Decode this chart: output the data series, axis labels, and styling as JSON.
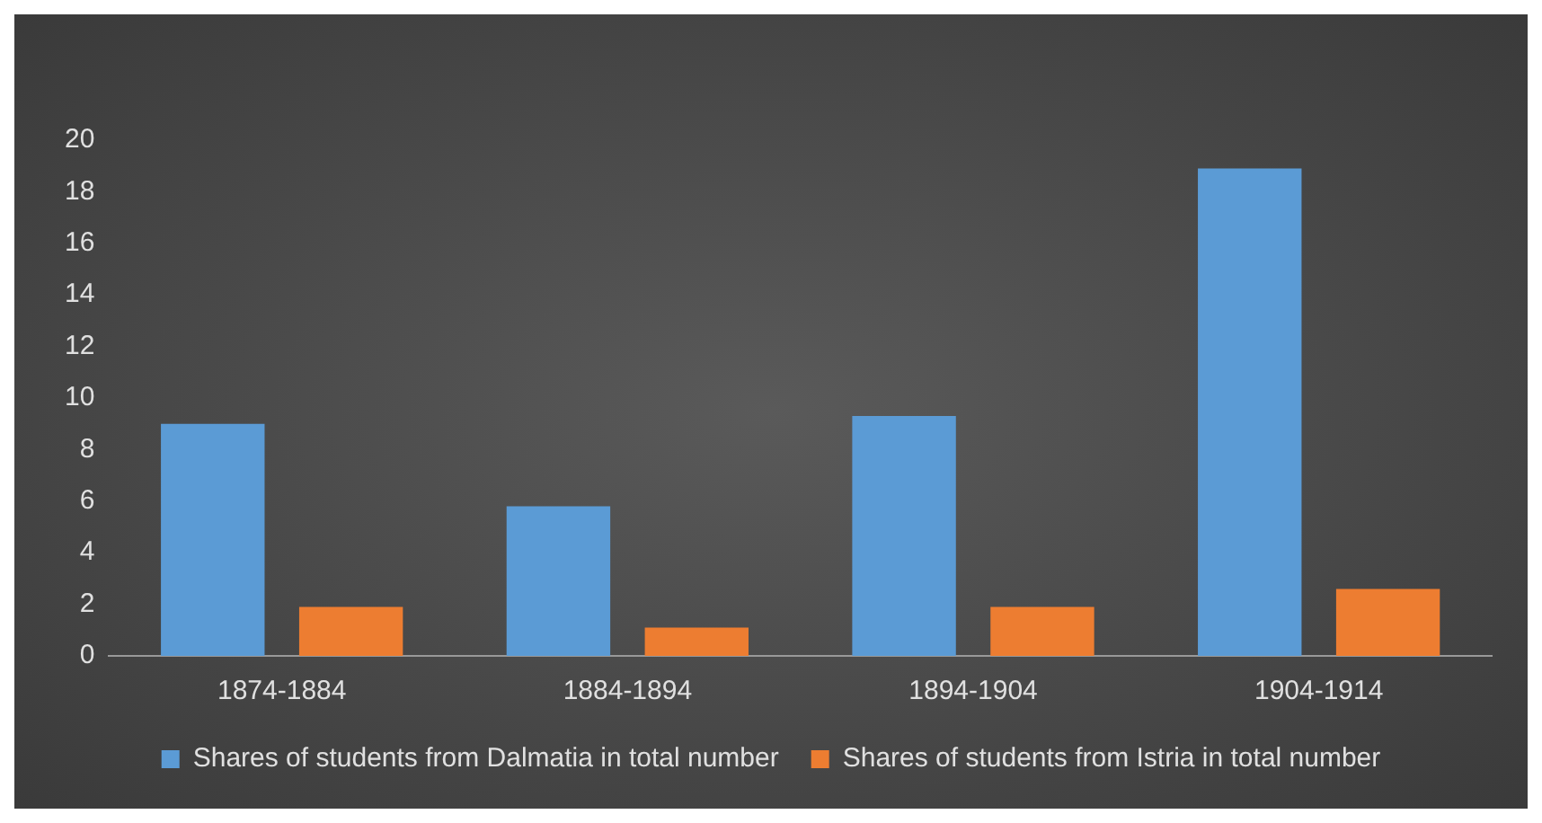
{
  "chart_data": {
    "type": "bar",
    "categories": [
      "1874-1884",
      "1884-1894",
      "1894-1904",
      "1904-1914"
    ],
    "series": [
      {
        "name": "Shares of students from Dalmatia in total number",
        "color": "#5b9bd5",
        "values": [
          9.0,
          5.8,
          9.3,
          18.9
        ]
      },
      {
        "name": "Shares of students from Istria in total number",
        "color": "#ed7d31",
        "values": [
          1.9,
          1.1,
          1.9,
          2.6
        ]
      }
    ],
    "ylim": [
      0,
      20
    ],
    "yticks": [
      0,
      2,
      4,
      6,
      8,
      10,
      12,
      14,
      16,
      18,
      20
    ],
    "grid": false,
    "legend": "bottom"
  }
}
